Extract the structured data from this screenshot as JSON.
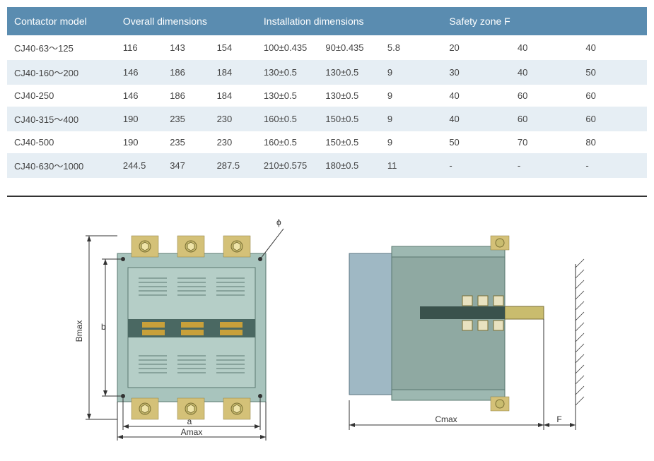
{
  "table": {
    "header_bg": "#5a8cb0",
    "row_alt_bg": "#e6eef4",
    "row_bg": "#ffffff",
    "text_color": "#444444",
    "header_text_color": "#ffffff",
    "columns": [
      {
        "label": "Contactor  model",
        "span": 1,
        "width": "17%"
      },
      {
        "label": "Overall dimensions",
        "span": 3,
        "width": "22%"
      },
      {
        "label": "Installation dimensions",
        "span": 3,
        "width": "29%"
      },
      {
        "label": "Safety zone F",
        "span": 3,
        "width": "32%"
      }
    ],
    "rows": [
      [
        "CJ40-63～125",
        "116",
        "143",
        "154",
        "100±0.435",
        "90±0.435",
        "5.8",
        "20",
        "40",
        "40"
      ],
      [
        "CJ40-160～200",
        "146",
        "186",
        "184",
        "130±0.5",
        "130±0.5",
        "9",
        "30",
        "40",
        "50"
      ],
      [
        "CJ40-250",
        "146",
        "186",
        "184",
        "130±0.5",
        "130±0.5",
        "9",
        "40",
        "60",
        "60"
      ],
      [
        "CJ40-315～400",
        "190",
        "235",
        "230",
        "160±0.5",
        "150±0.5",
        "9",
        "40",
        "60",
        "60"
      ],
      [
        "CJ40-500",
        "190",
        "235",
        "230",
        "160±0.5",
        "150±0.5",
        "9",
        "50",
        "70",
        "80"
      ],
      [
        "CJ40-630～1000",
        "244.5",
        "347",
        "287.5",
        "210±0.575",
        "180±0.5",
        "11",
        "-",
        "-",
        "-"
      ]
    ]
  },
  "diagram": {
    "labels": {
      "phi": "ϕ",
      "Bmax": "Bmax",
      "b": "b",
      "a": "a",
      "Amax": "Amax",
      "Cmax": "Cmax",
      "F": "F"
    },
    "colors": {
      "body": "#a8c4bd",
      "body_dark": "#7fa199",
      "terminal": "#d4c178",
      "bolt": "#c9bc6e",
      "label_plate": "#4a6862",
      "dim_line": "#333333"
    }
  }
}
